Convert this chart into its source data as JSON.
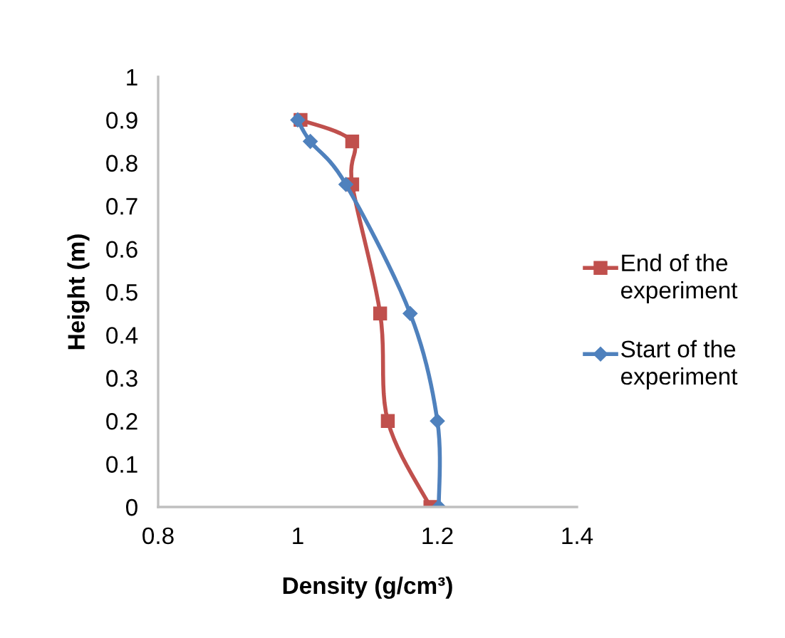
{
  "chart_data": {
    "type": "line",
    "xlabel": "Density (g/cm³)",
    "ylabel": "Height (m)",
    "xlim": [
      0.8,
      1.4
    ],
    "xticks": [
      0.8,
      1,
      1.2,
      1.4
    ],
    "ylim": [
      0,
      1
    ],
    "yticks": [
      0,
      0.1,
      0.2,
      0.3,
      0.4,
      0.5,
      0.6,
      0.7,
      0.8,
      0.9,
      1
    ],
    "grid": false,
    "legend": "right",
    "series": [
      {
        "name": "End of the experiment",
        "color": "#c0504d",
        "marker": "square",
        "x": [
          1.004,
          1.078,
          1.078,
          1.118,
          1.129,
          1.19
        ],
        "values": [
          0.9,
          0.85,
          0.75,
          0.45,
          0.2,
          0
        ]
      },
      {
        "name": "Start of the experiment",
        "color": "#4f81bd",
        "marker": "diamond",
        "x": [
          1.0,
          1.018,
          1.069,
          1.161,
          1.2,
          1.202
        ],
        "values": [
          0.9,
          0.85,
          0.75,
          0.45,
          0.2,
          0
        ]
      }
    ]
  }
}
